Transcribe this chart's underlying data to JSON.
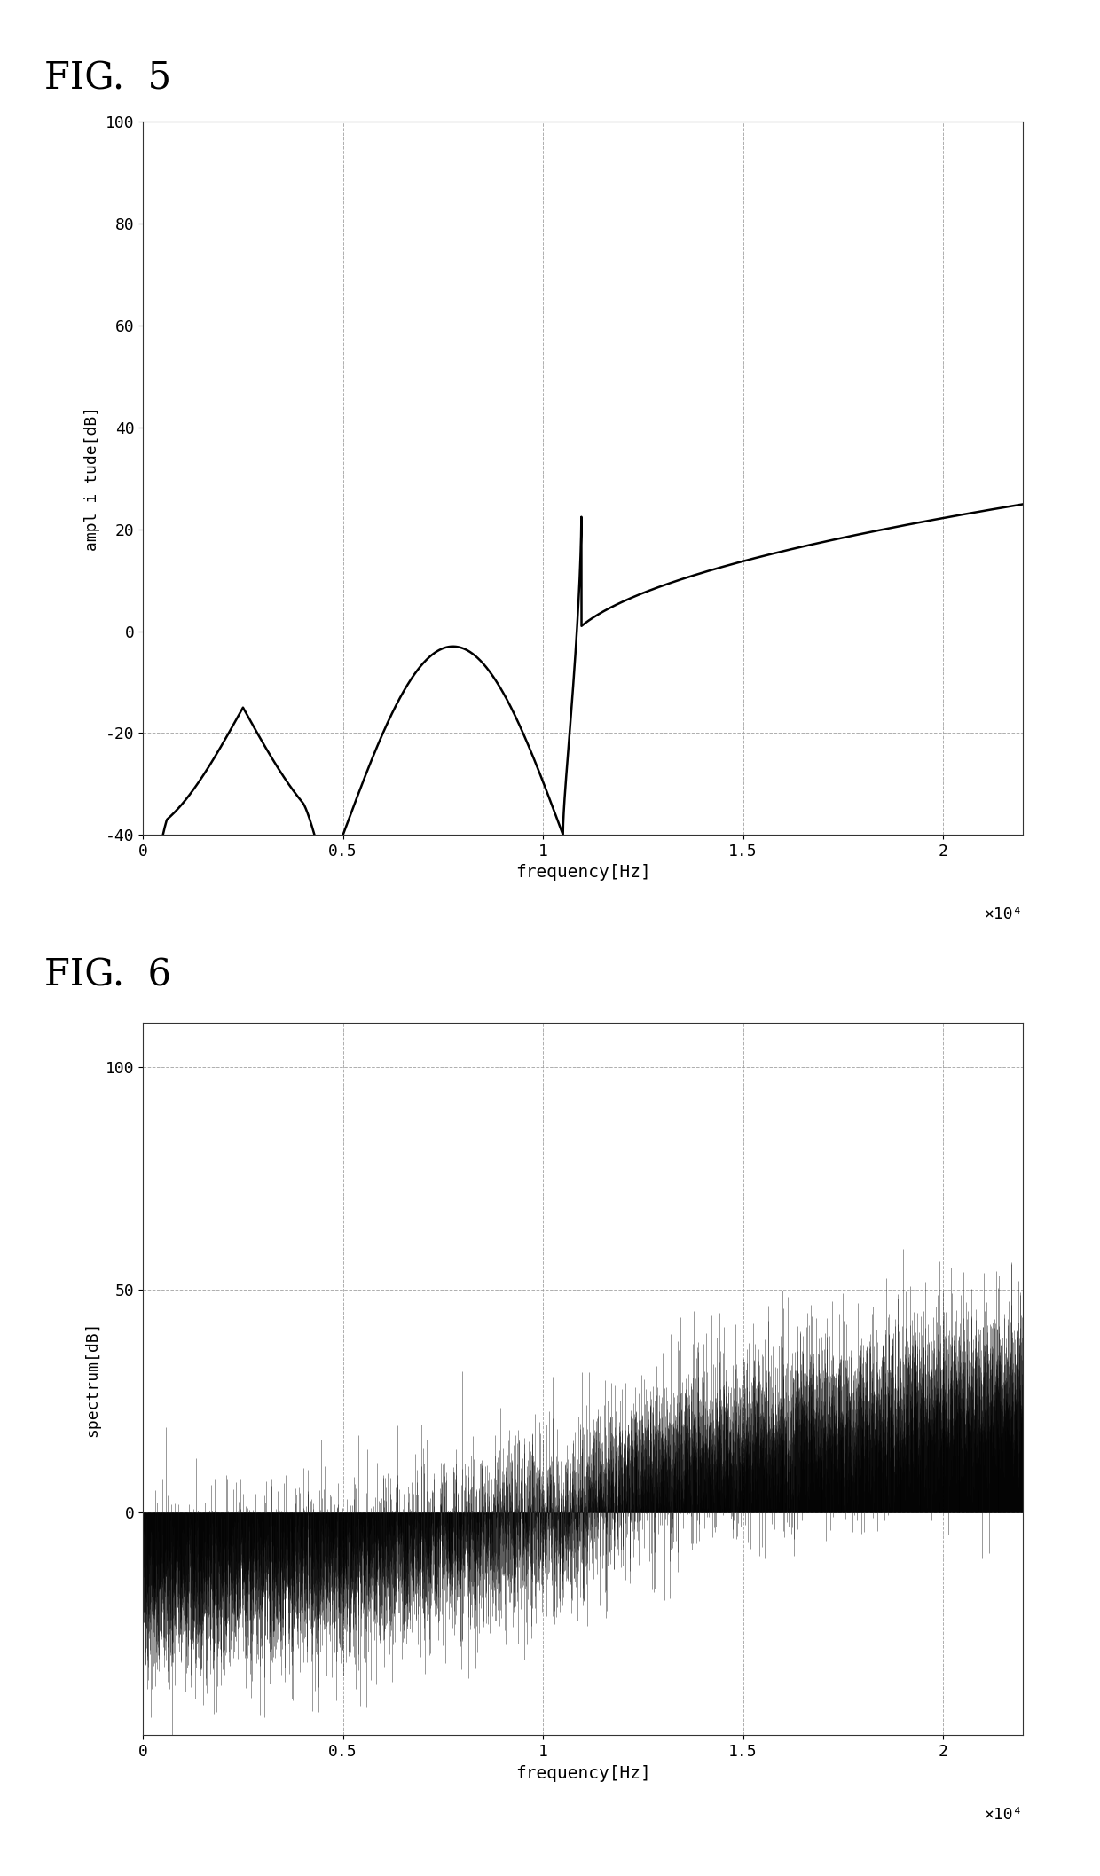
{
  "fig5_title": "FIG.  5",
  "fig6_title": "FIG.  6",
  "fig5_xlabel": "frequency[Hz]",
  "fig5_ylabel": "ampl i tude[dB]",
  "fig6_xlabel": "frequency[Hz]",
  "fig6_ylabel": "spectrum[dB]",
  "fig5_xlim": [
    0,
    22000
  ],
  "fig5_ylim": [
    -40,
    100
  ],
  "fig5_xticks": [
    0,
    5000,
    10000,
    15000,
    20000
  ],
  "fig5_xticklabels": [
    "0",
    "0.5",
    "1",
    "1.5",
    "2"
  ],
  "fig5_yticks": [
    -40,
    -20,
    0,
    20,
    40,
    60,
    80,
    100
  ],
  "fig5_yticklabels": [
    "-40",
    "-20",
    "0",
    "20",
    "40",
    "60",
    "80",
    "100"
  ],
  "fig6_xlim": [
    0,
    22000
  ],
  "fig6_ylim": [
    -50,
    110
  ],
  "fig6_xticks": [
    0,
    5000,
    10000,
    15000,
    20000
  ],
  "fig6_xticklabels": [
    "0",
    "0.5",
    "1",
    "1.5",
    "2"
  ],
  "fig6_yticks": [
    0,
    50,
    100
  ],
  "fig6_yticklabels": [
    "0",
    "50",
    "100"
  ],
  "x_scale_label": "×10⁴",
  "line_color": "#000000",
  "bg_color": "#ffffff",
  "grid_color": "#999999",
  "notch1_freq": 5000,
  "notch2_freq": 10500,
  "fs_half": 22050
}
